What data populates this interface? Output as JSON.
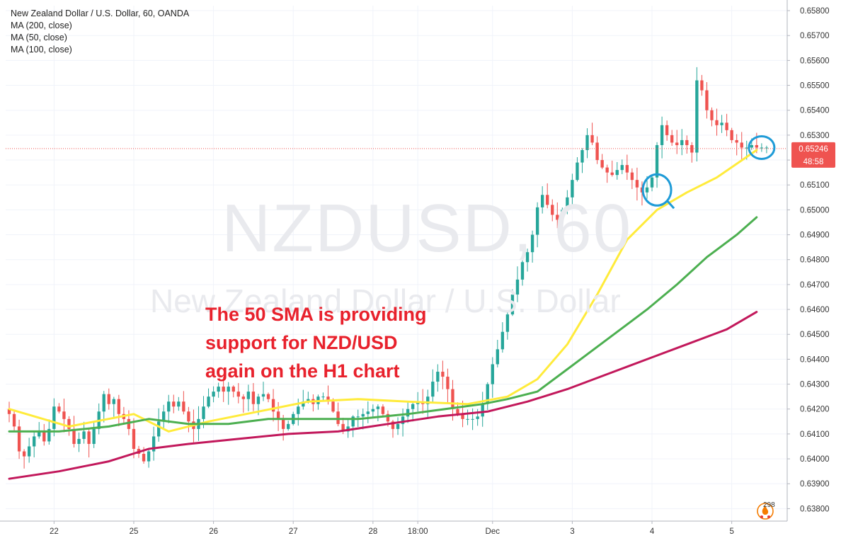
{
  "header": {
    "symbol_title": "New Zealand Dollar / U.S. Dollar, 60, OANDA",
    "indicators": [
      "MA (200, close)",
      "MA (50, close)",
      "MA (100, close)"
    ]
  },
  "watermark": {
    "main": "NZDUSD, 60",
    "sub": "New Zealand Dollar / U.S. Dollar"
  },
  "annotation": {
    "lines": [
      "The 50 SMA is providing",
      "support for NZD/USD",
      "again on the H1 chart"
    ],
    "color": "#e8212c"
  },
  "price_axis": {
    "current_price_label": "0.65246",
    "countdown_label": "48:58",
    "current_price_color": "#ef5350"
  },
  "badge": {
    "count": "298",
    "icon": "fire-badge-icon"
  },
  "colors": {
    "up": "#26a69a",
    "down": "#ef5350",
    "ma50": "#ffeb3b",
    "ma100": "#4caf50",
    "ma200": "#c2185b",
    "highlight": "#1e9bd7"
  },
  "chart_data": {
    "type": "candlestick",
    "title": "New Zealand Dollar / U.S. Dollar, 60, OANDA",
    "ylim": [
      0.6375,
      0.6582
    ],
    "y_ticks": [
      "0.65800",
      "0.65700",
      "0.65600",
      "0.65500",
      "0.65400",
      "0.65300",
      "0.65200",
      "0.65100",
      "0.65000",
      "0.64900",
      "0.64800",
      "0.64700",
      "0.64600",
      "0.64500",
      "0.64400",
      "0.64300",
      "0.64200",
      "0.64100",
      "0.64000",
      "0.63900",
      "0.63800"
    ],
    "x_ticks": [
      "22",
      "25",
      "26",
      "27",
      "28",
      "18:00",
      "Dec",
      "3",
      "4",
      "5"
    ],
    "x_tick_positions_bars": [
      9,
      25,
      41,
      57,
      73,
      82,
      97,
      113,
      129,
      145
    ],
    "bar_count": 155,
    "series": [
      {
        "name": "MA (50, close)",
        "color": "#ffeb3b",
        "approx_points": [
          [
            0,
            0.642
          ],
          [
            12,
            0.6413
          ],
          [
            25,
            0.6418
          ],
          [
            32,
            0.6411
          ],
          [
            40,
            0.6415
          ],
          [
            50,
            0.6419
          ],
          [
            60,
            0.6423
          ],
          [
            70,
            0.6424
          ],
          [
            80,
            0.6423
          ],
          [
            92,
            0.6422
          ],
          [
            100,
            0.6425
          ],
          [
            106,
            0.6432
          ],
          [
            112,
            0.6446
          ],
          [
            118,
            0.6466
          ],
          [
            124,
            0.6488
          ],
          [
            130,
            0.65
          ],
          [
            136,
            0.6507
          ],
          [
            142,
            0.6513
          ],
          [
            150,
            0.6524
          ]
        ]
      },
      {
        "name": "MA (100, close)",
        "color": "#4caf50",
        "approx_points": [
          [
            0,
            0.6411
          ],
          [
            10,
            0.6411
          ],
          [
            20,
            0.6413
          ],
          [
            28,
            0.6416
          ],
          [
            36,
            0.6414
          ],
          [
            44,
            0.6414
          ],
          [
            52,
            0.6416
          ],
          [
            60,
            0.6416
          ],
          [
            70,
            0.6416
          ],
          [
            80,
            0.6418
          ],
          [
            95,
            0.6422
          ],
          [
            100,
            0.6424
          ],
          [
            106,
            0.6427
          ],
          [
            112,
            0.6436
          ],
          [
            120,
            0.6448
          ],
          [
            128,
            0.646
          ],
          [
            134,
            0.647
          ],
          [
            140,
            0.6481
          ],
          [
            146,
            0.649
          ],
          [
            150,
            0.6497
          ]
        ]
      },
      {
        "name": "MA (200, close)",
        "color": "#c2185b",
        "approx_points": [
          [
            0,
            0.6392
          ],
          [
            10,
            0.6395
          ],
          [
            20,
            0.6399
          ],
          [
            28,
            0.6404
          ],
          [
            36,
            0.6406
          ],
          [
            46,
            0.6408
          ],
          [
            56,
            0.641
          ],
          [
            66,
            0.6411
          ],
          [
            76,
            0.6414
          ],
          [
            86,
            0.6417
          ],
          [
            96,
            0.6419
          ],
          [
            104,
            0.6423
          ],
          [
            112,
            0.6428
          ],
          [
            120,
            0.6434
          ],
          [
            128,
            0.644
          ],
          [
            136,
            0.6446
          ],
          [
            144,
            0.6452
          ],
          [
            150,
            0.6459
          ]
        ]
      }
    ],
    "candles_approx_closes": [
      0.6418,
      0.6413,
      0.6403,
      0.6401,
      0.6405,
      0.6409,
      0.6411,
      0.6407,
      0.6412,
      0.6421,
      0.6419,
      0.6416,
      0.6412,
      0.6406,
      0.6408,
      0.6411,
      0.6406,
      0.6412,
      0.6419,
      0.6426,
      0.6422,
      0.6424,
      0.6418,
      0.6416,
      0.6412,
      0.6404,
      0.6402,
      0.6399,
      0.6403,
      0.6409,
      0.6415,
      0.6419,
      0.6423,
      0.6421,
      0.6423,
      0.6419,
      0.6415,
      0.6412,
      0.6416,
      0.6421,
      0.6425,
      0.6427,
      0.6429,
      0.6427,
      0.6429,
      0.6427,
      0.6425,
      0.6424,
      0.6427,
      0.6422,
      0.6425,
      0.6426,
      0.6424,
      0.6419,
      0.6416,
      0.6412,
      0.6414,
      0.6418,
      0.6421,
      0.6423,
      0.6424,
      0.6422,
      0.6425,
      0.6425,
      0.6423,
      0.6419,
      0.6414,
      0.6411,
      0.6413,
      0.6417,
      0.6417,
      0.6418,
      0.6419,
      0.642,
      0.6421,
      0.6418,
      0.6415,
      0.6412,
      0.6414,
      0.6417,
      0.642,
      0.6422,
      0.6423,
      0.6422,
      0.6425,
      0.6431,
      0.6435,
      0.6433,
      0.6428,
      0.642,
      0.6418,
      0.6416,
      0.6416,
      0.6416,
      0.6417,
      0.6422,
      0.643,
      0.6438,
      0.6444,
      0.6451,
      0.6458,
      0.6466,
      0.6472,
      0.6479,
      0.6483,
      0.649,
      0.6501,
      0.6506,
      0.6502,
      0.6498,
      0.6496,
      0.65,
      0.6505,
      0.6512,
      0.6519,
      0.6524,
      0.653,
      0.6527,
      0.652,
      0.6517,
      0.6515,
      0.6514,
      0.6516,
      0.6518,
      0.6515,
      0.6512,
      0.6509,
      0.6507,
      0.6509,
      0.6513,
      0.6526,
      0.6534,
      0.653,
      0.6527,
      0.6526,
      0.6528,
      0.6526,
      0.6523,
      0.6552,
      0.6548,
      0.654,
      0.6536,
      0.6534,
      0.6535,
      0.6532,
      0.6528,
      0.6527,
      0.6525,
      0.6525,
      0.6526,
      0.6525,
      0.6525,
      0.6525
    ],
    "current_price": 0.65246,
    "highlights": [
      {
        "description": "circle",
        "bar": 130,
        "price": 0.6508
      },
      {
        "description": "circle",
        "bar": 151,
        "price": 0.6525
      }
    ]
  }
}
